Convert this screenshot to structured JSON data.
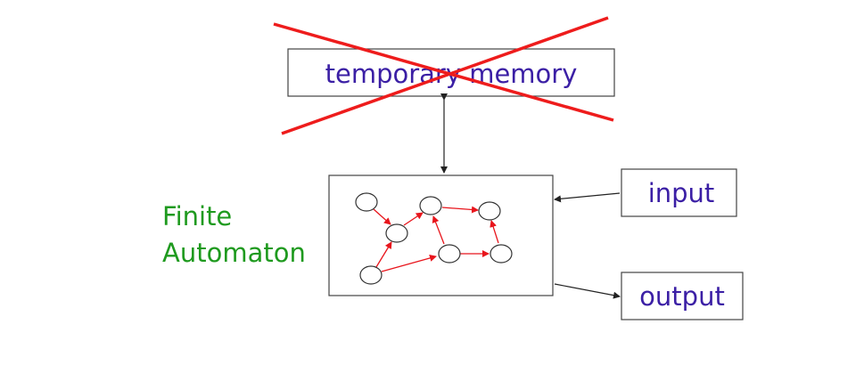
{
  "diagram": {
    "memory": {
      "label": "temporary memory"
    },
    "automaton": {
      "label_line1": "Finite",
      "label_line2": "Automaton"
    },
    "input": {
      "label": "input"
    },
    "output": {
      "label": "output"
    }
  },
  "colors": {
    "box_text": "#3b1fa5",
    "automaton_label": "#1f9a1f",
    "cross": "#ee1c1c",
    "state_arrow": "#e8151c",
    "line": "#2b2b2b"
  }
}
